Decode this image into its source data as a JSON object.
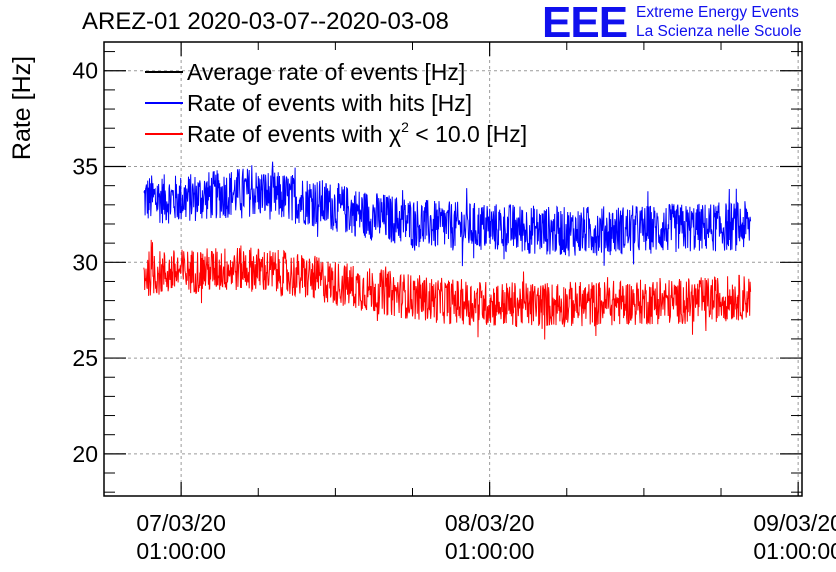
{
  "header": {
    "title": "AREZ-01 2020-03-07--2020-03-08",
    "logo_text": "EEE",
    "logo_line1": "Extreme Energy Events",
    "logo_line2": "La Scienza nelle Scuole"
  },
  "colors": {
    "average": "#000000",
    "hits": "#0000ff",
    "chi2": "#ff0000",
    "logo": "#1010ee"
  },
  "chart_data": {
    "type": "line",
    "title": "AREZ-01 2020-03-07--2020-03-08",
    "xlabel": "",
    "ylabel": "Rate [Hz]",
    "ylim": [
      17.8,
      41.5
    ],
    "xlim_hours": [
      -6.0,
      48.3
    ],
    "yticks": [
      20,
      25,
      30,
      35,
      40
    ],
    "ytick_labels": [
      "20",
      "25",
      "30",
      "35",
      "40"
    ],
    "xticks": [
      {
        "hour": 0,
        "line1": "07/03/20",
        "line2": "01:00:00"
      },
      {
        "hour": 24,
        "line1": "08/03/20",
        "line2": "01:00:00"
      },
      {
        "hour": 48,
        "line1": "09/03/20",
        "line2": "01:00:00"
      }
    ],
    "grid": true,
    "legend_position": "top-left",
    "series": [
      {
        "name": "Average rate of events [Hz]",
        "legend_label": "Average rate of events [Hz]",
        "color": "#000000",
        "values": []
      },
      {
        "name": "Rate of events with hits [Hz]",
        "legend_label": "Rate of events with hits [Hz]",
        "color": "#0000ff",
        "time_range_hours": [
          -2.9,
          44.3
        ],
        "trend_hours": [
          -2.9,
          0,
          5,
          10,
          15,
          20,
          25,
          30,
          35,
          40,
          44.3
        ],
        "trend_values": [
          33.3,
          33.3,
          33.7,
          33.2,
          32.4,
          31.9,
          31.8,
          31.6,
          31.7,
          31.8,
          31.9
        ],
        "noise_amplitude": 1.3
      },
      {
        "name": "Rate of events with chi2 < 10.0 [Hz]",
        "legend_label_prefix": "Rate of events with ",
        "legend_symbol": "χ",
        "legend_sup": "2",
        "legend_label_suffix": " < 10.0 [Hz]",
        "color": "#ff0000",
        "time_range_hours": [
          -2.9,
          44.3
        ],
        "trend_hours": [
          -2.9,
          0,
          5,
          10,
          15,
          20,
          25,
          30,
          35,
          40,
          44.3
        ],
        "trend_values": [
          29.4,
          29.5,
          29.7,
          29.2,
          28.5,
          28.0,
          27.8,
          27.8,
          27.9,
          28.0,
          28.2
        ],
        "noise_amplitude": 1.2
      }
    ]
  }
}
